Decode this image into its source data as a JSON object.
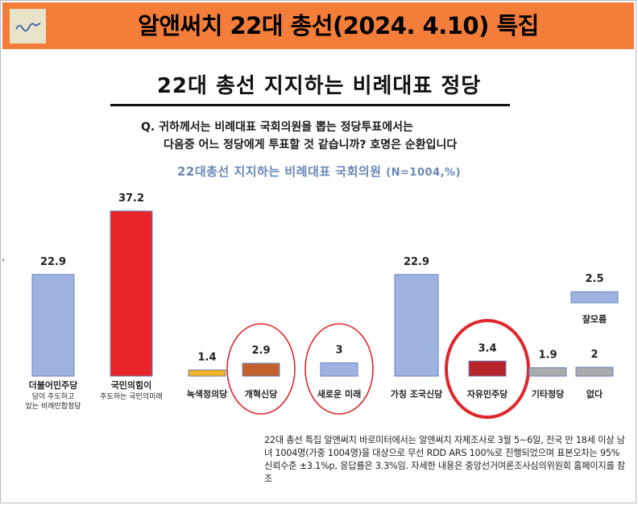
{
  "header": {
    "title": "알앤써치 22대 총선(2024. 4.10) 특집",
    "bg_color": "#f47d3a",
    "logo_icon": "brand-logo-icon"
  },
  "subtitle": "22대 총선 지지하는 비례대표 정당",
  "question": {
    "line1": "Q. 귀하께서는 비례대표 국회의원을 뽑는 정당투표에서는",
    "line2": "다음중 어느 정당에게 투표할 것  같습니까? 호명은 순환입니다"
  },
  "chart_title": {
    "main": "22대총선 지지하는 비례대표 국회의원 ",
    "n": "(N=1004,%)"
  },
  "chart_data": {
    "type": "bar",
    "title": "22대총선 지지하는 비례대표 국회의원 (N=1004,%)",
    "categories": [
      "더불어민주당",
      "국민의힘이",
      "녹색정의당",
      "개혁신당",
      "새로운 미래",
      "가칭 조국신당",
      "자유민주당",
      "기타정당",
      "없다",
      "잘모름"
    ],
    "category_sublabels": [
      "당이 주도하고\n있는 비례민합정당",
      "주도하는 국민의미래",
      "",
      "",
      "",
      "",
      "",
      "",
      "",
      ""
    ],
    "values": [
      22.9,
      37.2,
      1.4,
      2.9,
      3,
      22.9,
      3.4,
      1.9,
      2,
      2.5
    ],
    "value_labels": [
      "22.9",
      "37.2",
      "1.4",
      "2.9",
      "3",
      "22.9",
      "3.4",
      "1.9",
      "2",
      "2.5"
    ],
    "colors": [
      "#9fb3e2",
      "#e8262a",
      "#f0b323",
      "#c5612c",
      "#9fb3e2",
      "#9fb3e2",
      "#b8242a",
      "#a9abad",
      "#a9abad",
      "#9fb3e2"
    ],
    "highlighted": [
      "개혁신당",
      "새로운 미래",
      "자유민주당"
    ],
    "highlight_color": "#e0262c",
    "ylim": [
      0,
      40
    ],
    "grid": false
  },
  "footnote": "22대 총선 특집 알앤써치 바로미터에서는 알앤써치 자체조사로 3월 5~6일, 전국 만 18세 이상 남녀 1004명(가중 1004명)을 대상으로 무선 RDD ARS 100%로 진행되었으며 표본오차는 95% 신뢰수준 ±3.1%p, 응답률은 3.3%임. 자세한 내용은 중앙선거여론조사심의위원회 홈페이지를 참조"
}
